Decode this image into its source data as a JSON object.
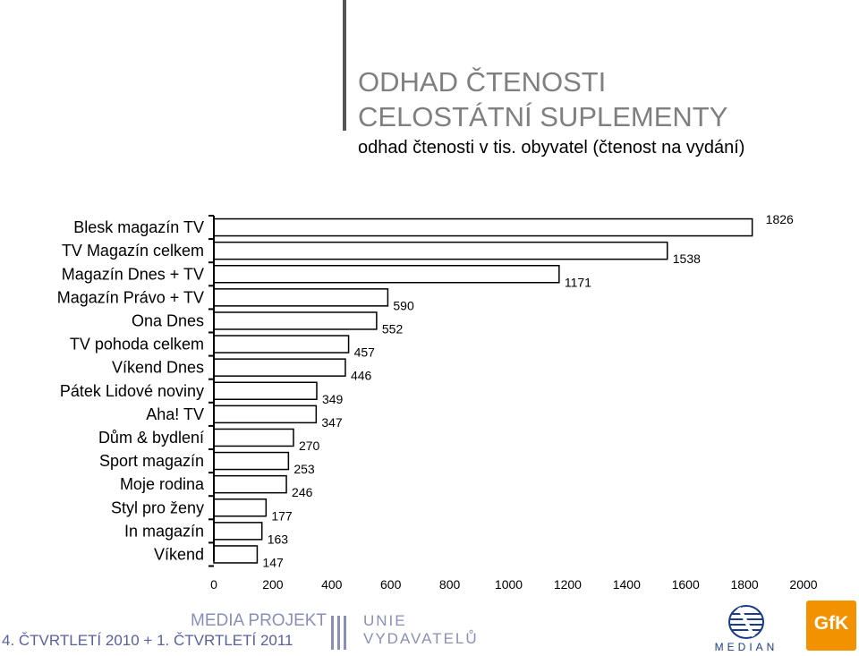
{
  "header": {
    "title_line1": "ODHAD ČTENOSTI",
    "title_line2": "CELOSTÁTNÍ SUPLEMENTY",
    "subtitle": "odhad čtenosti v tis. obyvatel (čtenost na vydání)"
  },
  "chart_data": {
    "type": "bar",
    "orientation": "horizontal",
    "categories": [
      "Blesk magazín TV",
      "TV Magazín celkem",
      "Magazín Dnes + TV",
      "Magazín Právo + TV",
      "Ona Dnes",
      "TV pohoda celkem",
      "Víkend Dnes",
      "Pátek Lidové noviny",
      "Aha! TV",
      "Dům & bydlení",
      "Sport magazín",
      "Moje rodina",
      "Styl pro ženy",
      "In magazín",
      "Víkend"
    ],
    "values": [
      1826,
      1538,
      1171,
      590,
      552,
      457,
      446,
      349,
      347,
      270,
      253,
      246,
      177,
      163,
      147
    ],
    "xlim": [
      0,
      2000
    ],
    "x_ticks": [
      0,
      200,
      400,
      600,
      800,
      1000,
      1200,
      1400,
      1600,
      1800,
      2000
    ],
    "grid": false,
    "bar_color": "#ffffff",
    "bar_edge_color": "#000000"
  },
  "footer": {
    "media_projekt": "MEDIA PROJEKT",
    "period": "4. ČTVRTLETÍ 2010 + 1. ČTVRTLETÍ 2011",
    "unie_line1": "UNIE",
    "unie_line2": "VYDAVATELŮ",
    "median": "MEDIAN",
    "gfk": "GfK",
    "median_color": "#1a3a8a",
    "gfk_color": "#f39200",
    "title_color": "#7f7f7f"
  }
}
